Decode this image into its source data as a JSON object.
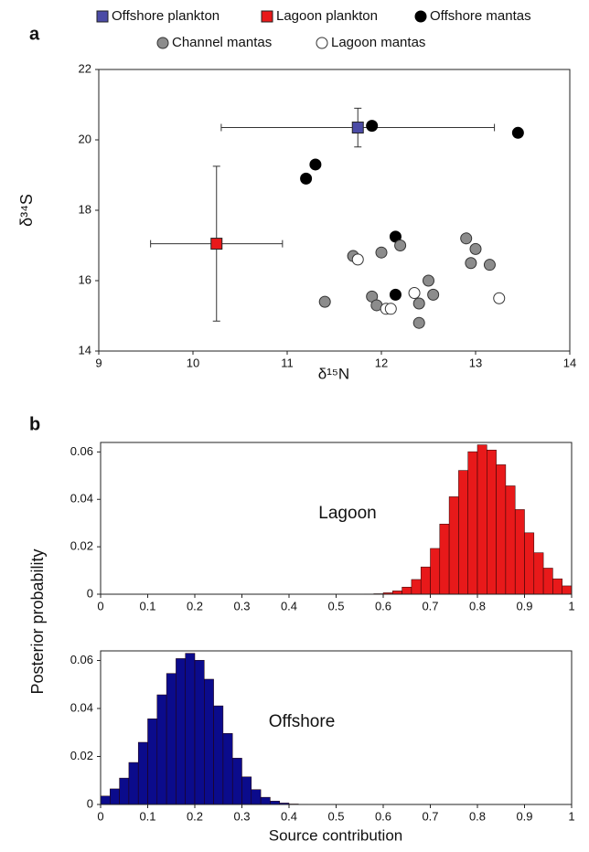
{
  "chart_data": [
    {
      "type": "scatter",
      "panel": "a",
      "xlabel": "δ¹⁵N",
      "ylabel": "δ³⁴S",
      "xlim": [
        9,
        14
      ],
      "ylim": [
        14,
        22
      ],
      "xticks": [
        9,
        10,
        11,
        12,
        13,
        14
      ],
      "yticks": [
        14,
        16,
        18,
        20,
        22
      ],
      "series": [
        {
          "name": "Offshore plankton",
          "marker": "square",
          "color": "#4b4ba6",
          "edgecolor": "#222222",
          "x": [
            11.75
          ],
          "y": [
            20.35
          ],
          "xerr": [
            1.45
          ],
          "yerr": [
            0.55
          ]
        },
        {
          "name": "Lagoon plankton",
          "marker": "square",
          "color": "#e8191a",
          "edgecolor": "#222222",
          "x": [
            10.25
          ],
          "y": [
            17.05
          ],
          "xerr": [
            0.7
          ],
          "yerr": [
            2.2
          ]
        },
        {
          "name": "Offshore mantas",
          "marker": "circle",
          "color": "#000000",
          "edgecolor": "#000000",
          "x": [
            11.9,
            13.45,
            11.3,
            11.2,
            12.15,
            12.15
          ],
          "y": [
            20.4,
            20.2,
            19.3,
            18.9,
            17.25,
            15.6
          ]
        },
        {
          "name": "Channel mantas",
          "marker": "circle",
          "color": "#8c8c8c",
          "edgecolor": "#333333",
          "x": [
            11.7,
            12.0,
            12.2,
            12.9,
            13.0,
            12.95,
            13.15,
            11.4,
            11.9,
            11.95,
            12.5,
            12.55,
            12.4,
            12.4
          ],
          "y": [
            16.7,
            16.8,
            17.0,
            17.2,
            16.9,
            16.5,
            16.45,
            15.4,
            15.55,
            15.3,
            16.0,
            15.6,
            15.35,
            14.8
          ]
        },
        {
          "name": "Lagoon mantas",
          "marker": "circle",
          "color": "#ffffff",
          "edgecolor": "#333333",
          "x": [
            11.75,
            12.35,
            12.05,
            12.1,
            13.25
          ],
          "y": [
            16.6,
            15.65,
            15.2,
            15.2,
            15.5
          ]
        }
      ]
    },
    {
      "type": "histogram",
      "panel": "b",
      "annotation": "Lagoon",
      "ylabel": "Posterior probability",
      "color": "#e8191a",
      "xlim": [
        0,
        1
      ],
      "ylim": [
        0,
        0.064
      ],
      "xticks": [
        0,
        0.1,
        0.2,
        0.3,
        0.4,
        0.5,
        0.6,
        0.7,
        0.8,
        0.9,
        1
      ],
      "yticks": [
        0,
        0.02,
        0.04,
        0.06
      ],
      "bins": [
        0,
        0.02,
        0.04,
        0.06,
        0.08,
        0.1,
        0.12,
        0.14,
        0.16,
        0.18,
        0.2,
        0.22,
        0.24,
        0.26,
        0.28,
        0.3,
        0.32,
        0.34,
        0.36,
        0.38,
        0.4,
        0.42,
        0.44,
        0.46,
        0.48,
        0.5,
        0.52,
        0.54,
        0.56,
        0.58,
        0.6,
        0.62,
        0.64,
        0.66,
        0.68,
        0.7,
        0.72,
        0.74,
        0.76,
        0.78,
        0.8,
        0.82,
        0.84,
        0.86,
        0.88,
        0.9,
        0.92,
        0.94,
        0.96,
        0.98,
        1
      ],
      "values": [
        0,
        0,
        0,
        0,
        0,
        0,
        0,
        0,
        0,
        0,
        0,
        0,
        0,
        0,
        0,
        0,
        0,
        0,
        0,
        0,
        0,
        0,
        0,
        0,
        0,
        0,
        0,
        0,
        0.0001,
        0.0002,
        0.0006,
        0.0014,
        0.003,
        0.0062,
        0.0115,
        0.0193,
        0.0296,
        0.0411,
        0.0522,
        0.0601,
        0.063,
        0.0608,
        0.0546,
        0.0457,
        0.0357,
        0.0259,
        0.0175,
        0.011,
        0.0065,
        0.0035
      ]
    },
    {
      "type": "histogram",
      "annotation": "Offshore",
      "xlabel": "Source contribution",
      "color": "#0b0b8c",
      "xlim": [
        0,
        1
      ],
      "ylim": [
        0,
        0.064
      ],
      "xticks": [
        0,
        0.1,
        0.2,
        0.3,
        0.4,
        0.5,
        0.6,
        0.7,
        0.8,
        0.9,
        1
      ],
      "yticks": [
        0,
        0.02,
        0.04,
        0.06
      ],
      "bins": [
        0,
        0.02,
        0.04,
        0.06,
        0.08,
        0.1,
        0.12,
        0.14,
        0.16,
        0.18,
        0.2,
        0.22,
        0.24,
        0.26,
        0.28,
        0.3,
        0.32,
        0.34,
        0.36,
        0.38,
        0.4,
        0.42,
        0.44,
        0.46,
        0.48,
        0.5,
        0.52,
        0.54,
        0.56,
        0.58,
        0.6,
        0.62,
        0.64,
        0.66,
        0.68,
        0.7,
        0.72,
        0.74,
        0.76,
        0.78,
        0.8,
        0.82,
        0.84,
        0.86,
        0.88,
        0.9,
        0.92,
        0.94,
        0.96,
        0.98,
        1
      ],
      "values": [
        0.0035,
        0.0065,
        0.011,
        0.0175,
        0.0259,
        0.0357,
        0.0457,
        0.0546,
        0.0608,
        0.063,
        0.0601,
        0.0522,
        0.0411,
        0.0296,
        0.0193,
        0.0115,
        0.0062,
        0.003,
        0.0014,
        0.0006,
        0.0002,
        0.0001,
        0,
        0,
        0,
        0,
        0,
        0,
        0,
        0,
        0,
        0,
        0,
        0,
        0,
        0,
        0,
        0,
        0,
        0,
        0,
        0,
        0,
        0,
        0,
        0,
        0,
        0,
        0,
        0
      ]
    }
  ]
}
